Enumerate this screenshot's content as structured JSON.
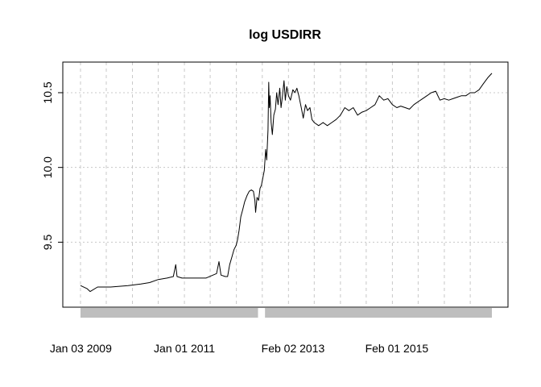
{
  "chart_data": {
    "type": "line",
    "title": "log USDIRR",
    "xlabel": "",
    "ylabel": "",
    "x_range": [
      "2009-01-01",
      "2016-11-30"
    ],
    "ylim": [
      9.13,
      10.64
    ],
    "y_ticks": [
      9.5,
      10.0,
      10.5
    ],
    "y_tick_labels": [
      "9.5",
      "10.0",
      "10.5"
    ],
    "x_ticks": [
      "2009-01-03",
      "2011-01-01",
      "2013-02-02",
      "2015-02-01"
    ],
    "x_tick_labels": [
      "Jan 03 2009",
      "Jan 01 2011",
      "Feb 02 2013",
      "Feb 01 2015"
    ],
    "grid": true,
    "bottom_bar_color": "#bebebe",
    "line_color": "#000000",
    "series": [
      {
        "values": [
          [
            "2009-01-01",
            9.21
          ],
          [
            "2009-02-15",
            9.19
          ],
          [
            "2009-03-10",
            9.17
          ],
          [
            "2009-05-01",
            9.2
          ],
          [
            "2009-08-01",
            9.2
          ],
          [
            "2009-12-01",
            9.21
          ],
          [
            "2010-03-01",
            9.22
          ],
          [
            "2010-05-01",
            9.23
          ],
          [
            "2010-07-01",
            9.25
          ],
          [
            "2010-09-01",
            9.26
          ],
          [
            "2010-10-15",
            9.27
          ],
          [
            "2010-11-01",
            9.35
          ],
          [
            "2010-11-10",
            9.27
          ],
          [
            "2010-12-15",
            9.26
          ],
          [
            "2011-03-01",
            9.26
          ],
          [
            "2011-06-01",
            9.26
          ],
          [
            "2011-08-15",
            9.29
          ],
          [
            "2011-09-01",
            9.37
          ],
          [
            "2011-09-15",
            9.28
          ],
          [
            "2011-10-15",
            9.27
          ],
          [
            "2011-10-31",
            9.27
          ],
          [
            "2011-11-15",
            9.35
          ],
          [
            "2011-11-30",
            9.4
          ],
          [
            "2011-12-15",
            9.45
          ],
          [
            "2011-12-31",
            9.48
          ],
          [
            "2012-01-10",
            9.52
          ],
          [
            "2012-01-20",
            9.58
          ],
          [
            "2012-02-01",
            9.67
          ],
          [
            "2012-02-15",
            9.72
          ],
          [
            "2012-02-28",
            9.77
          ],
          [
            "2012-03-15",
            9.81
          ],
          [
            "2012-03-31",
            9.84
          ],
          [
            "2012-04-15",
            9.85
          ],
          [
            "2012-04-30",
            9.84
          ],
          [
            "2012-05-10",
            9.78
          ],
          [
            "2012-05-15",
            9.7
          ],
          [
            "2012-05-25",
            9.8
          ],
          [
            "2012-06-05",
            9.78
          ],
          [
            "2012-06-15",
            9.86
          ],
          [
            "2012-06-25",
            9.88
          ],
          [
            "2012-07-05",
            9.93
          ],
          [
            "2012-07-15",
            9.98
          ],
          [
            "2012-07-25",
            10.12
          ],
          [
            "2012-08-01",
            10.05
          ],
          [
            "2012-08-10",
            10.25
          ],
          [
            "2012-08-15",
            10.57
          ],
          [
            "2012-08-20",
            10.4
          ],
          [
            "2012-08-25",
            10.48
          ],
          [
            "2012-09-01",
            10.3
          ],
          [
            "2012-09-10",
            10.22
          ],
          [
            "2012-09-20",
            10.35
          ],
          [
            "2012-10-01",
            10.39
          ],
          [
            "2012-10-10",
            10.5
          ],
          [
            "2012-10-20",
            10.42
          ],
          [
            "2012-11-01",
            10.53
          ],
          [
            "2012-11-10",
            10.4
          ],
          [
            "2012-11-20",
            10.48
          ],
          [
            "2012-12-01",
            10.58
          ],
          [
            "2012-12-10",
            10.45
          ],
          [
            "2012-12-20",
            10.54
          ],
          [
            "2013-01-01",
            10.48
          ],
          [
            "2013-01-15",
            10.45
          ],
          [
            "2013-02-01",
            10.52
          ],
          [
            "2013-02-15",
            10.5
          ],
          [
            "2013-03-01",
            10.53
          ],
          [
            "2013-03-15",
            10.48
          ],
          [
            "2013-04-01",
            10.4
          ],
          [
            "2013-04-15",
            10.33
          ],
          [
            "2013-05-01",
            10.42
          ],
          [
            "2013-05-15",
            10.38
          ],
          [
            "2013-06-01",
            10.4
          ],
          [
            "2013-06-15",
            10.32
          ],
          [
            "2013-07-01",
            10.3
          ],
          [
            "2013-08-01",
            10.28
          ],
          [
            "2013-09-01",
            10.3
          ],
          [
            "2013-10-01",
            10.28
          ],
          [
            "2013-11-01",
            10.3
          ],
          [
            "2013-12-01",
            10.32
          ],
          [
            "2014-01-01",
            10.35
          ],
          [
            "2014-02-01",
            10.4
          ],
          [
            "2014-03-01",
            10.38
          ],
          [
            "2014-04-01",
            10.4
          ],
          [
            "2014-05-01",
            10.35
          ],
          [
            "2014-06-01",
            10.37
          ],
          [
            "2014-07-01",
            10.38
          ],
          [
            "2014-08-01",
            10.4
          ],
          [
            "2014-09-01",
            10.42
          ],
          [
            "2014-10-01",
            10.48
          ],
          [
            "2014-11-01",
            10.45
          ],
          [
            "2014-12-01",
            10.46
          ],
          [
            "2015-01-01",
            10.42
          ],
          [
            "2015-02-01",
            10.4
          ],
          [
            "2015-03-01",
            10.41
          ],
          [
            "2015-04-01",
            10.4
          ],
          [
            "2015-05-01",
            10.39
          ],
          [
            "2015-06-01",
            10.42
          ],
          [
            "2015-07-01",
            10.44
          ],
          [
            "2015-08-01",
            10.46
          ],
          [
            "2015-09-01",
            10.48
          ],
          [
            "2015-10-01",
            10.5
          ],
          [
            "2015-11-01",
            10.51
          ],
          [
            "2015-12-01",
            10.45
          ],
          [
            "2016-01-01",
            10.46
          ],
          [
            "2016-02-01",
            10.45
          ],
          [
            "2016-03-01",
            10.46
          ],
          [
            "2016-04-01",
            10.47
          ],
          [
            "2016-05-01",
            10.48
          ],
          [
            "2016-06-01",
            10.48
          ],
          [
            "2016-07-01",
            10.5
          ],
          [
            "2016-08-01",
            10.5
          ],
          [
            "2016-09-01",
            10.52
          ],
          [
            "2016-10-01",
            10.56
          ],
          [
            "2016-11-01",
            10.6
          ],
          [
            "2016-11-30",
            10.63
          ]
        ]
      }
    ]
  }
}
